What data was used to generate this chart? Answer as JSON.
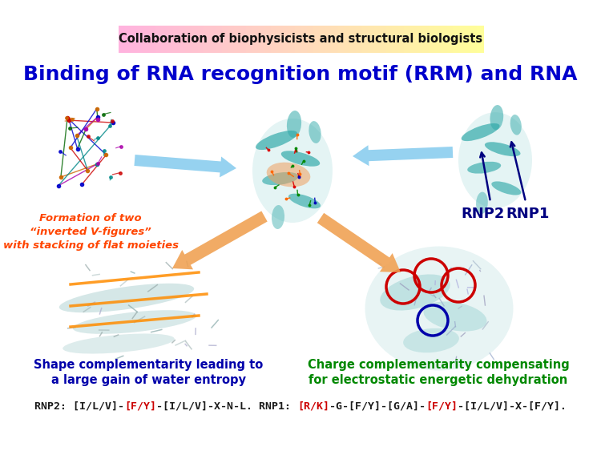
{
  "title_banner_text": "Collaboration of biophysicists and structural biologists",
  "banner_color_left": "#FFB3DE",
  "banner_color_right": "#FFFF99",
  "main_title": "Binding of RNA recognition motif (RRM) and RNA",
  "main_title_color": "#0000CC",
  "subtitle_text": "Formation of two\n“inverted V-figures”\nwith stacking of flat moieties",
  "subtitle_color": "#FF4500",
  "label_rnp2": "RNP2",
  "label_rnp1": "RNP1",
  "label_rnp_color": "#000080",
  "label_shape_line1": "Shape complementarity leading to",
  "label_shape_line2": "a large gain of water entropy",
  "label_shape_color": "#0000AA",
  "label_charge_line1": "Charge complementarity compensating",
  "label_charge_line2": "for electrostatic energetic dehydration",
  "label_charge_color": "#008800",
  "bottom_parts": [
    [
      "RNP2: [I/L/V]-",
      "#1a1a1a"
    ],
    [
      "[F/Y]",
      "#CC0000"
    ],
    [
      "-[I/L/V]-X-N-L. RNP1: ",
      "#1a1a1a"
    ],
    [
      "[R/K]",
      "#CC0000"
    ],
    [
      "-G-[F/Y]-[G/A]-",
      "#1a1a1a"
    ],
    [
      "[F/Y]",
      "#CC0000"
    ],
    [
      "-[I/L/V]-X-[F/Y].",
      "#1a1a1a"
    ]
  ],
  "bg_color": "#FFFFFF",
  "arrow_blue": "#88CCEE",
  "arrow_orange": "#F0A050",
  "teal": "#55BBBB",
  "teal_dark": "#33AAAA",
  "orange_bind": "#F0A060"
}
